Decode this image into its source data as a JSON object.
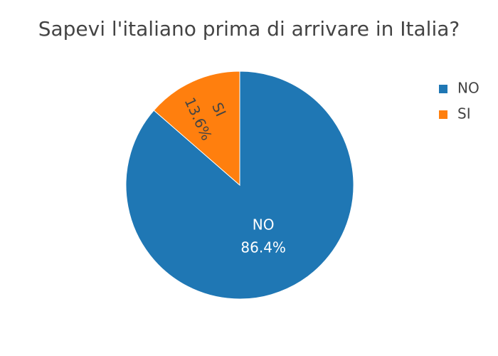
{
  "chart_data": {
    "type": "pie",
    "title": "Sapevi l'italiano prima di arrivare in Italia?",
    "categories": [
      "NO",
      "SI"
    ],
    "values": [
      86.4,
      13.6
    ],
    "value_labels": [
      "86.4%",
      "13.6%"
    ],
    "colors": [
      "#1f77b4",
      "#ff7f0e"
    ],
    "legend": "top-right"
  }
}
